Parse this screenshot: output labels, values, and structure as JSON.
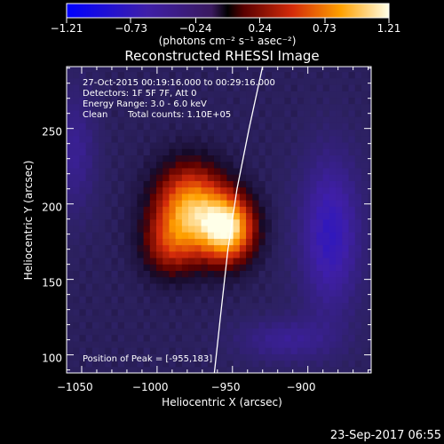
{
  "chart_data": {
    "type": "heatmap",
    "title": "Reconstructed RHESSI Image",
    "xlabel": "Heliocentric X (arcsec)",
    "ylabel": "Heliocentric Y (arcsec)",
    "xlim": [
      -1060,
      -858
    ],
    "ylim": [
      88,
      291
    ],
    "x_ticks": [
      -1050,
      -1000,
      -950,
      -900
    ],
    "x_tick_labels": [
      "−1050",
      "−1000",
      "−950",
      "−900"
    ],
    "y_ticks": [
      100,
      150,
      200,
      250
    ],
    "y_tick_labels": [
      "100",
      "150",
      "200",
      "250"
    ],
    "colorbar": {
      "label": "(photons cm⁻² s⁻¹ asec⁻²)",
      "range": [
        -1.21,
        1.21
      ],
      "ticks": [
        -1.21,
        -0.73,
        -0.24,
        0.24,
        0.73,
        1.21
      ],
      "tick_labels": [
        "−1.21",
        "−0.73",
        "−0.24",
        "0.24",
        "0.73",
        "1.21"
      ]
    },
    "annotations": {
      "time_range": "27-Oct-2015 00:19:16.000 to 00:29:16.000",
      "detectors": "Detectors: 1F 5F 7F, Att 0",
      "energy_range": "Energy Range: 3.0 - 6.0 keV",
      "method": "Clean",
      "total_counts": "Total counts: 1.10E+05",
      "peak_position": "Position of Peak = [-955,183]"
    },
    "peak": [
      -955,
      183
    ],
    "sources": [
      {
        "x": -978,
        "y": 196,
        "amp": 1.08,
        "sx": 16,
        "sy": 20
      },
      {
        "x": -953,
        "y": 184,
        "amp": 1.21,
        "sx": 12,
        "sy": 15
      },
      {
        "x": -993,
        "y": 172,
        "amp": 0.4,
        "sx": 12,
        "sy": 14
      }
    ],
    "negatives": [
      {
        "x": -885,
        "y": 180,
        "amp": -0.55,
        "sx": 14,
        "sy": 36
      },
      {
        "x": -1055,
        "y": 235,
        "amp": -0.3,
        "sx": 10,
        "sy": 28
      },
      {
        "x": -915,
        "y": 110,
        "amp": -0.3,
        "sx": 22,
        "sy": 10
      }
    ],
    "limb_curve": {
      "x": [
        -930,
        -939,
        -947,
        -953,
        -958,
        -962
      ],
      "y": [
        291,
        250,
        210,
        170,
        125,
        88
      ]
    },
    "colors": {
      "background": "#000000",
      "plot_bg": "#2c2160",
      "foreground": "#ffffff"
    }
  },
  "footer": {
    "timestamp": "23-Sep-2017 06:55"
  }
}
